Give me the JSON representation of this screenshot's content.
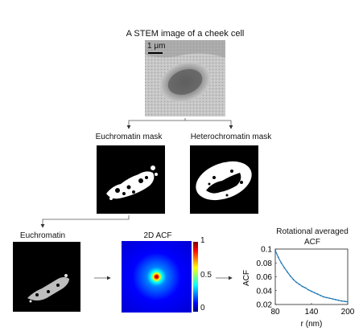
{
  "stem": {
    "title": "A STEM image of a cheek cell",
    "scale_bar": "1 μm"
  },
  "masks": {
    "euchromatin": "Euchromatin mask",
    "heterochromatin": "Heterochromatin mask"
  },
  "bottom": {
    "euchromatin": "Euchromatin",
    "acf2d": "2D ACF"
  },
  "colorbar": {
    "ticks": [
      "1",
      "0.5",
      "0"
    ],
    "colormap": "jet"
  },
  "chart": {
    "title_line1": "Rotational averaged",
    "title_line2": "ACF"
  },
  "chart_data": {
    "type": "line",
    "title": "Rotational averaged ACF",
    "xlabel": "r (nm)",
    "ylabel": "ACF",
    "xlim": [
      80,
      200
    ],
    "ylim": [
      0.02,
      0.1
    ],
    "xticks": [
      "80",
      "140",
      "200"
    ],
    "yticks": [
      "0.1",
      "0.08",
      "0.06",
      "0.04",
      "0.02"
    ],
    "x": [
      80,
      85,
      90,
      95,
      100,
      105,
      110,
      115,
      120,
      125,
      130,
      135,
      140,
      145,
      150,
      155,
      160,
      165,
      170,
      175,
      180,
      185,
      190,
      195,
      200
    ],
    "y": [
      0.098,
      0.088,
      0.08,
      0.073,
      0.067,
      0.061,
      0.056,
      0.052,
      0.049,
      0.046,
      0.044,
      0.041,
      0.039,
      0.037,
      0.035,
      0.033,
      0.031,
      0.03,
      0.029,
      0.028,
      0.027,
      0.026,
      0.025,
      0.0245,
      0.024
    ],
    "color": "#1f77b4",
    "grid": false,
    "marker": "dots"
  }
}
